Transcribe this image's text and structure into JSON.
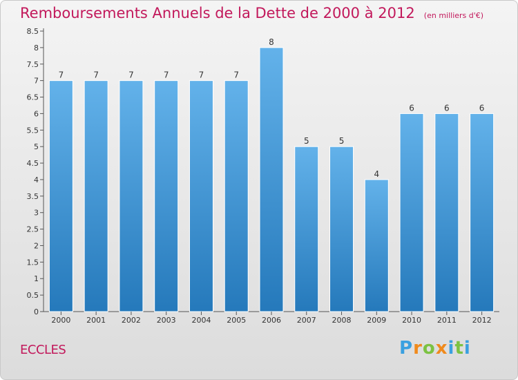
{
  "title": "Remboursements Annuels de la Dette de 2000 à 2012",
  "subtitle": "(en milliers d'€)",
  "commune": "ECCLES",
  "logo": {
    "text": "Proxiti",
    "letters": [
      "P",
      "r",
      "o",
      "x",
      "i",
      "t",
      "i"
    ],
    "colors": [
      "#3aa0e0",
      "#f08a1c",
      "#7cc242",
      "#f08a1c",
      "#3aa0e0",
      "#7cc242",
      "#3aa0e0"
    ]
  },
  "colors": {
    "bar_light": "#63b2ea",
    "bar_dark": "#2579bb",
    "title": "#c2185b",
    "axis_text": "#333333"
  },
  "chart_data": {
    "type": "bar",
    "categories": [
      "2000",
      "2001",
      "2002",
      "2003",
      "2004",
      "2005",
      "2006",
      "2007",
      "2008",
      "2009",
      "2010",
      "2011",
      "2012"
    ],
    "values": [
      7,
      7,
      7,
      7,
      7,
      7,
      8,
      5,
      5,
      4,
      6,
      6,
      6
    ],
    "data_labels": [
      "7",
      "7",
      "7",
      "7",
      "7",
      "7",
      "8",
      "5",
      "5",
      "4",
      "6",
      "6",
      "6"
    ],
    "y_ticks": [
      0,
      0.5,
      1,
      1.5,
      2,
      2.5,
      3,
      3.5,
      4,
      4.5,
      5,
      5.5,
      6,
      6.5,
      7,
      7.5,
      8,
      8.5
    ],
    "y_tick_labels": [
      "0",
      "0.5",
      "1",
      "1.5",
      "2",
      "2.5",
      "3",
      "3.5",
      "4",
      "4.5",
      "5",
      "5.5",
      "6",
      "6.5",
      "7",
      "7.5",
      "8",
      "8.5"
    ],
    "ylim": [
      0,
      8.5
    ],
    "title": "Remboursements Annuels de la Dette de 2000 à 2012",
    "xlabel": "",
    "ylabel": "",
    "grid": false,
    "legend": "none"
  }
}
